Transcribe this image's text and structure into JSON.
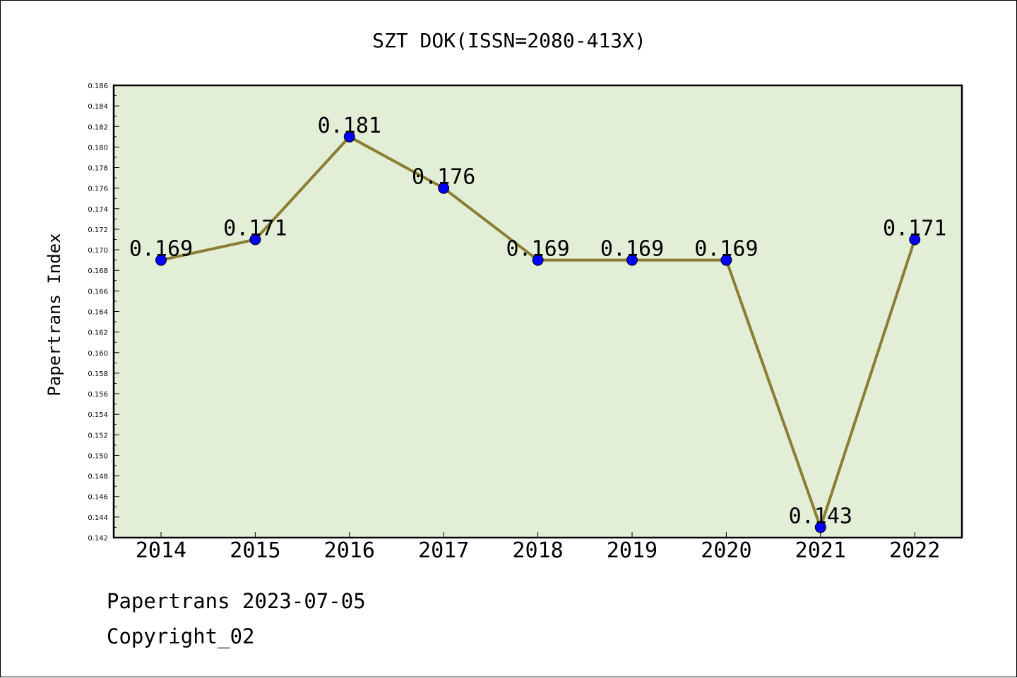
{
  "footer": {
    "line1": "Papertrans 2023-07-05",
    "line2": "Copyright_02"
  },
  "colors": {
    "plot_background": "#e2efd6",
    "line": "#8b7d32",
    "marker": "#0000ff",
    "axis": "#000000"
  },
  "chart_data": {
    "type": "line",
    "title": "SZT DOK(ISSN=2080-413X)",
    "xlabel": "",
    "ylabel": "Papertrans Index",
    "categories": [
      "2014",
      "2015",
      "2016",
      "2017",
      "2018",
      "2019",
      "2020",
      "2021",
      "2022"
    ],
    "values": [
      0.169,
      0.171,
      0.181,
      0.176,
      0.169,
      0.169,
      0.169,
      0.143,
      0.171
    ],
    "data_labels": [
      "0.169",
      "0.171",
      "0.181",
      "0.176",
      "0.169",
      "0.169",
      "0.169",
      "0.143",
      "0.171"
    ],
    "ylim": [
      0.142,
      0.186
    ],
    "yticks": [
      "0.142",
      "0.144",
      "0.146",
      "0.148",
      "0.150",
      "0.152",
      "0.154",
      "0.156",
      "0.158",
      "0.160",
      "0.162",
      "0.164",
      "0.166",
      "0.168",
      "0.170",
      "0.172",
      "0.174",
      "0.176",
      "0.178",
      "0.180",
      "0.182",
      "0.184",
      "0.186"
    ],
    "grid": false,
    "legend": "none"
  }
}
